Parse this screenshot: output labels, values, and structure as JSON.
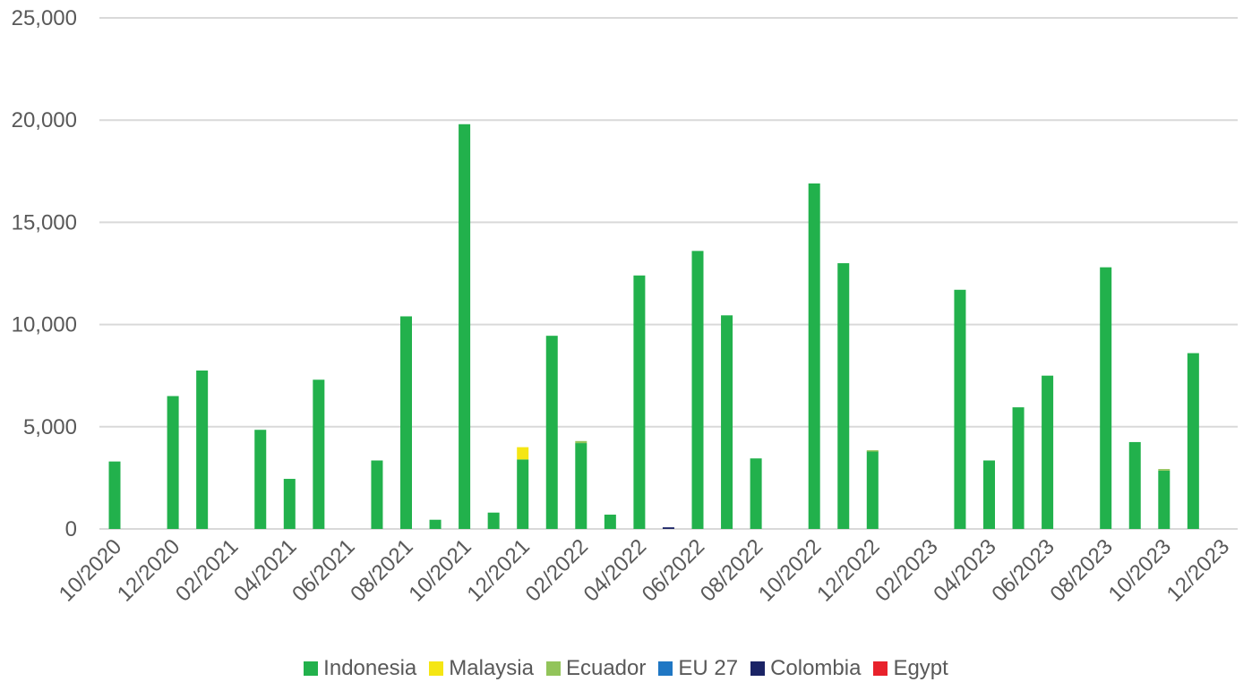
{
  "chart_data": {
    "type": "bar",
    "stacked": true,
    "title": "",
    "xlabel": "",
    "ylabel": "",
    "ylim": [
      0,
      25000
    ],
    "yticks": [
      "0",
      "5,000",
      "10,000",
      "15,000",
      "20,000",
      "25,000"
    ],
    "ytick_values": [
      0,
      5000,
      10000,
      15000,
      20000,
      25000
    ],
    "grid": true,
    "legend_position": "bottom",
    "categories": [
      "10/2020",
      "11/2020",
      "12/2020",
      "01/2021",
      "02/2021",
      "03/2021",
      "04/2021",
      "05/2021",
      "06/2021",
      "07/2021",
      "08/2021",
      "09/2021",
      "10/2021",
      "11/2021",
      "12/2021",
      "01/2022",
      "02/2022",
      "03/2022",
      "04/2022",
      "05/2022",
      "06/2022",
      "07/2022",
      "08/2022",
      "09/2022",
      "10/2022",
      "11/2022",
      "12/2022",
      "01/2023",
      "02/2023",
      "03/2023",
      "04/2023",
      "05/2023",
      "06/2023",
      "07/2023",
      "08/2023",
      "09/2023",
      "10/2023",
      "11/2023",
      "12/2023"
    ],
    "xtick_labels": [
      "10/2020",
      "12/2020",
      "02/2021",
      "04/2021",
      "06/2021",
      "08/2021",
      "10/2021",
      "12/2021",
      "02/2022",
      "04/2022",
      "06/2022",
      "08/2022",
      "10/2022",
      "12/2022",
      "02/2023",
      "04/2023",
      "06/2023",
      "08/2023",
      "10/2023",
      "12/2023"
    ],
    "series": [
      {
        "name": "Indonesia",
        "color": "#22b14c",
        "values": [
          3300,
          0,
          6500,
          7750,
          0,
          4850,
          2450,
          7300,
          0,
          3350,
          10400,
          450,
          19800,
          800,
          3400,
          9450,
          4200,
          700,
          12400,
          0,
          13600,
          10450,
          3450,
          0,
          16900,
          13000,
          3800,
          0,
          0,
          11700,
          3350,
          5950,
          7500,
          0,
          12800,
          4250,
          2850,
          8600,
          0
        ]
      },
      {
        "name": "Malaysia",
        "color": "#f5e613",
        "values": [
          0,
          0,
          0,
          0,
          0,
          0,
          0,
          0,
          0,
          0,
          0,
          0,
          0,
          0,
          600,
          0,
          0,
          0,
          0,
          0,
          0,
          0,
          0,
          0,
          0,
          0,
          0,
          0,
          0,
          0,
          0,
          0,
          0,
          0,
          0,
          0,
          0,
          0,
          0
        ]
      },
      {
        "name": "Ecuador",
        "color": "#92c45a",
        "values": [
          0,
          0,
          0,
          0,
          0,
          0,
          0,
          0,
          0,
          0,
          0,
          0,
          0,
          0,
          0,
          0,
          100,
          0,
          0,
          0,
          0,
          0,
          0,
          0,
          0,
          0,
          50,
          0,
          0,
          0,
          0,
          0,
          0,
          0,
          0,
          0,
          80,
          0,
          0
        ]
      },
      {
        "name": "EU 27",
        "color": "#1f77c4",
        "values": [
          0,
          0,
          0,
          0,
          0,
          0,
          0,
          0,
          0,
          0,
          0,
          0,
          0,
          0,
          0,
          0,
          0,
          0,
          0,
          0,
          0,
          0,
          0,
          0,
          0,
          0,
          0,
          0,
          0,
          0,
          0,
          0,
          0,
          0,
          0,
          0,
          0,
          0,
          0
        ]
      },
      {
        "name": "Colombia",
        "color": "#1b2466",
        "values": [
          0,
          0,
          0,
          0,
          0,
          0,
          0,
          0,
          0,
          0,
          0,
          0,
          0,
          0,
          0,
          0,
          0,
          0,
          0,
          80,
          0,
          0,
          0,
          0,
          0,
          0,
          0,
          0,
          0,
          0,
          0,
          0,
          0,
          0,
          0,
          0,
          0,
          0,
          0
        ]
      },
      {
        "name": "Egypt",
        "color": "#e8212b",
        "values": [
          0,
          0,
          0,
          0,
          0,
          0,
          0,
          0,
          0,
          0,
          0,
          0,
          0,
          0,
          0,
          0,
          0,
          0,
          0,
          0,
          0,
          0,
          0,
          0,
          0,
          0,
          0,
          0,
          0,
          0,
          0,
          0,
          0,
          0,
          0,
          0,
          0,
          0,
          0
        ]
      }
    ]
  }
}
